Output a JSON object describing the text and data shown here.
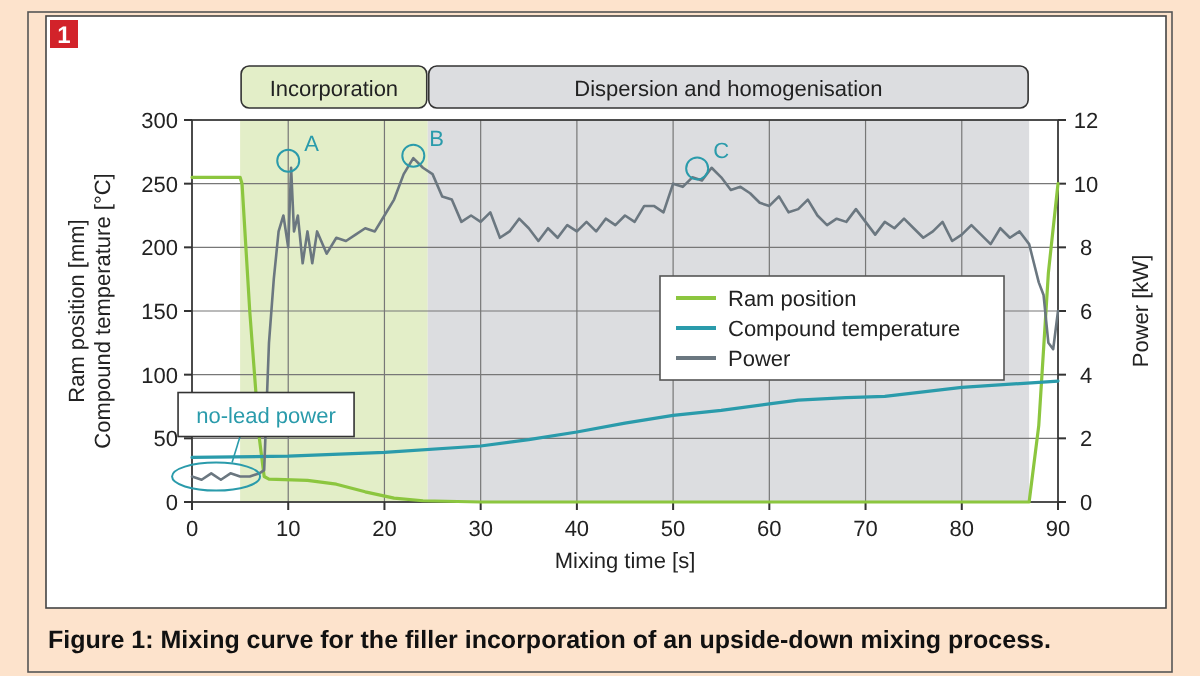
{
  "chart_data": {
    "type": "line",
    "title": "Figure 1: Mixing curve for the filler incorporation of an upside-down mixing process.",
    "xlabel": "Mixing time [s]",
    "ylabel": "Ram position [mm]\nCompound temperature [°C]",
    "y2label": "Power [kW]",
    "x": [
      0,
      5,
      5.2,
      6,
      7,
      7.5,
      8,
      12,
      15,
      18,
      21,
      24,
      30,
      87,
      88,
      89,
      90
    ],
    "series": [
      {
        "name": "Ram position",
        "color": "#8cc63f",
        "values": [
          255,
          255,
          250,
          150,
          50,
          20,
          18,
          17,
          14,
          8,
          3,
          1,
          0,
          0,
          60,
          180,
          250
        ]
      },
      {
        "name": "Compound temperature",
        "color": "#2a9bab",
        "x": [
          0,
          10,
          20,
          30,
          35,
          40,
          45,
          50,
          55,
          60,
          63,
          68,
          72,
          80,
          90
        ],
        "values": [
          35,
          36,
          39,
          44,
          49,
          55,
          62,
          68,
          72,
          77,
          80,
          82,
          83,
          90,
          95
        ]
      },
      {
        "name": "Power",
        "color": "#6b7780",
        "axis": "y2",
        "x": [
          0,
          1,
          2,
          3,
          4,
          5,
          6,
          7,
          7.5,
          8,
          8.5,
          9,
          9.5,
          10,
          10.3,
          10.6,
          11,
          11.5,
          12,
          12.5,
          13,
          14,
          15,
          16,
          17,
          18,
          19,
          20,
          21,
          22,
          23,
          24,
          25,
          26,
          27,
          28,
          29,
          30,
          31,
          32,
          33,
          34,
          35,
          36,
          37,
          38,
          39,
          40,
          41,
          42,
          43,
          44,
          45,
          46,
          47,
          48,
          49,
          50,
          51,
          52,
          53,
          54,
          55,
          56,
          57,
          58,
          59,
          60,
          61,
          62,
          63,
          64,
          65,
          66,
          67,
          68,
          69,
          70,
          71,
          72,
          73,
          74,
          75,
          76,
          77,
          78,
          79,
          80,
          81,
          82,
          83,
          84,
          85,
          86,
          86.5,
          87,
          87.5,
          88,
          88.5,
          89,
          89.5,
          90
        ],
        "values": [
          0.8,
          0.7,
          0.9,
          0.7,
          0.9,
          0.8,
          0.8,
          0.9,
          1,
          5,
          7,
          8.5,
          9,
          8,
          10.5,
          8.5,
          9,
          7.5,
          8.5,
          7.5,
          8.5,
          7.8,
          8.3,
          8.2,
          8.4,
          8.6,
          8.5,
          9,
          9.5,
          10.3,
          10.8,
          10.5,
          10.3,
          9.6,
          9.5,
          8.8,
          9.0,
          8.8,
          9.1,
          8.3,
          8.5,
          8.9,
          8.6,
          8.2,
          8.6,
          8.3,
          8.7,
          8.5,
          8.8,
          8.5,
          8.9,
          8.7,
          9,
          8.8,
          9.3,
          9.3,
          9.1,
          10,
          9.9,
          10.2,
          10.1,
          10.5,
          10.2,
          9.8,
          9.9,
          9.7,
          9.4,
          9.3,
          9.6,
          9.1,
          9.2,
          9.5,
          9,
          8.7,
          8.9,
          8.8,
          9.2,
          8.8,
          8.4,
          8.8,
          8.6,
          8.9,
          8.6,
          8.3,
          8.5,
          8.8,
          8.2,
          8.4,
          8.7,
          8.4,
          8.1,
          8.6,
          8.3,
          8.5,
          8.3,
          8.1,
          7.5,
          6.9,
          6.5,
          5,
          4.8,
          6
        ]
      }
    ],
    "xlim": [
      0,
      90
    ],
    "xticks": [
      0,
      10,
      20,
      30,
      40,
      50,
      60,
      70,
      80,
      90
    ],
    "ylim": [
      0,
      300
    ],
    "yticks": [
      0,
      50,
      100,
      150,
      200,
      250,
      300
    ],
    "y2lim": [
      0,
      12
    ],
    "y2ticks": [
      0,
      2,
      4,
      6,
      8,
      10,
      12
    ],
    "bands": [
      {
        "axis": "x",
        "from": 5,
        "to": 24.5,
        "label": "Incorporation",
        "color": "#e3eec8"
      },
      {
        "axis": "x",
        "from": 24.5,
        "to": 87,
        "label": "Dispersion and homogenisation",
        "color": "#dcdde0"
      }
    ],
    "annotations": [
      "1",
      {
        "text": "A",
        "x": 10,
        "y": 268
      },
      {
        "text": "B",
        "x": 23,
        "y": 272
      },
      {
        "text": "C",
        "x": 52.5,
        "y": 262
      },
      {
        "text": "no-lead power",
        "x": 2.5,
        "y": 20
      }
    ],
    "grid": true,
    "legend": "right"
  }
}
